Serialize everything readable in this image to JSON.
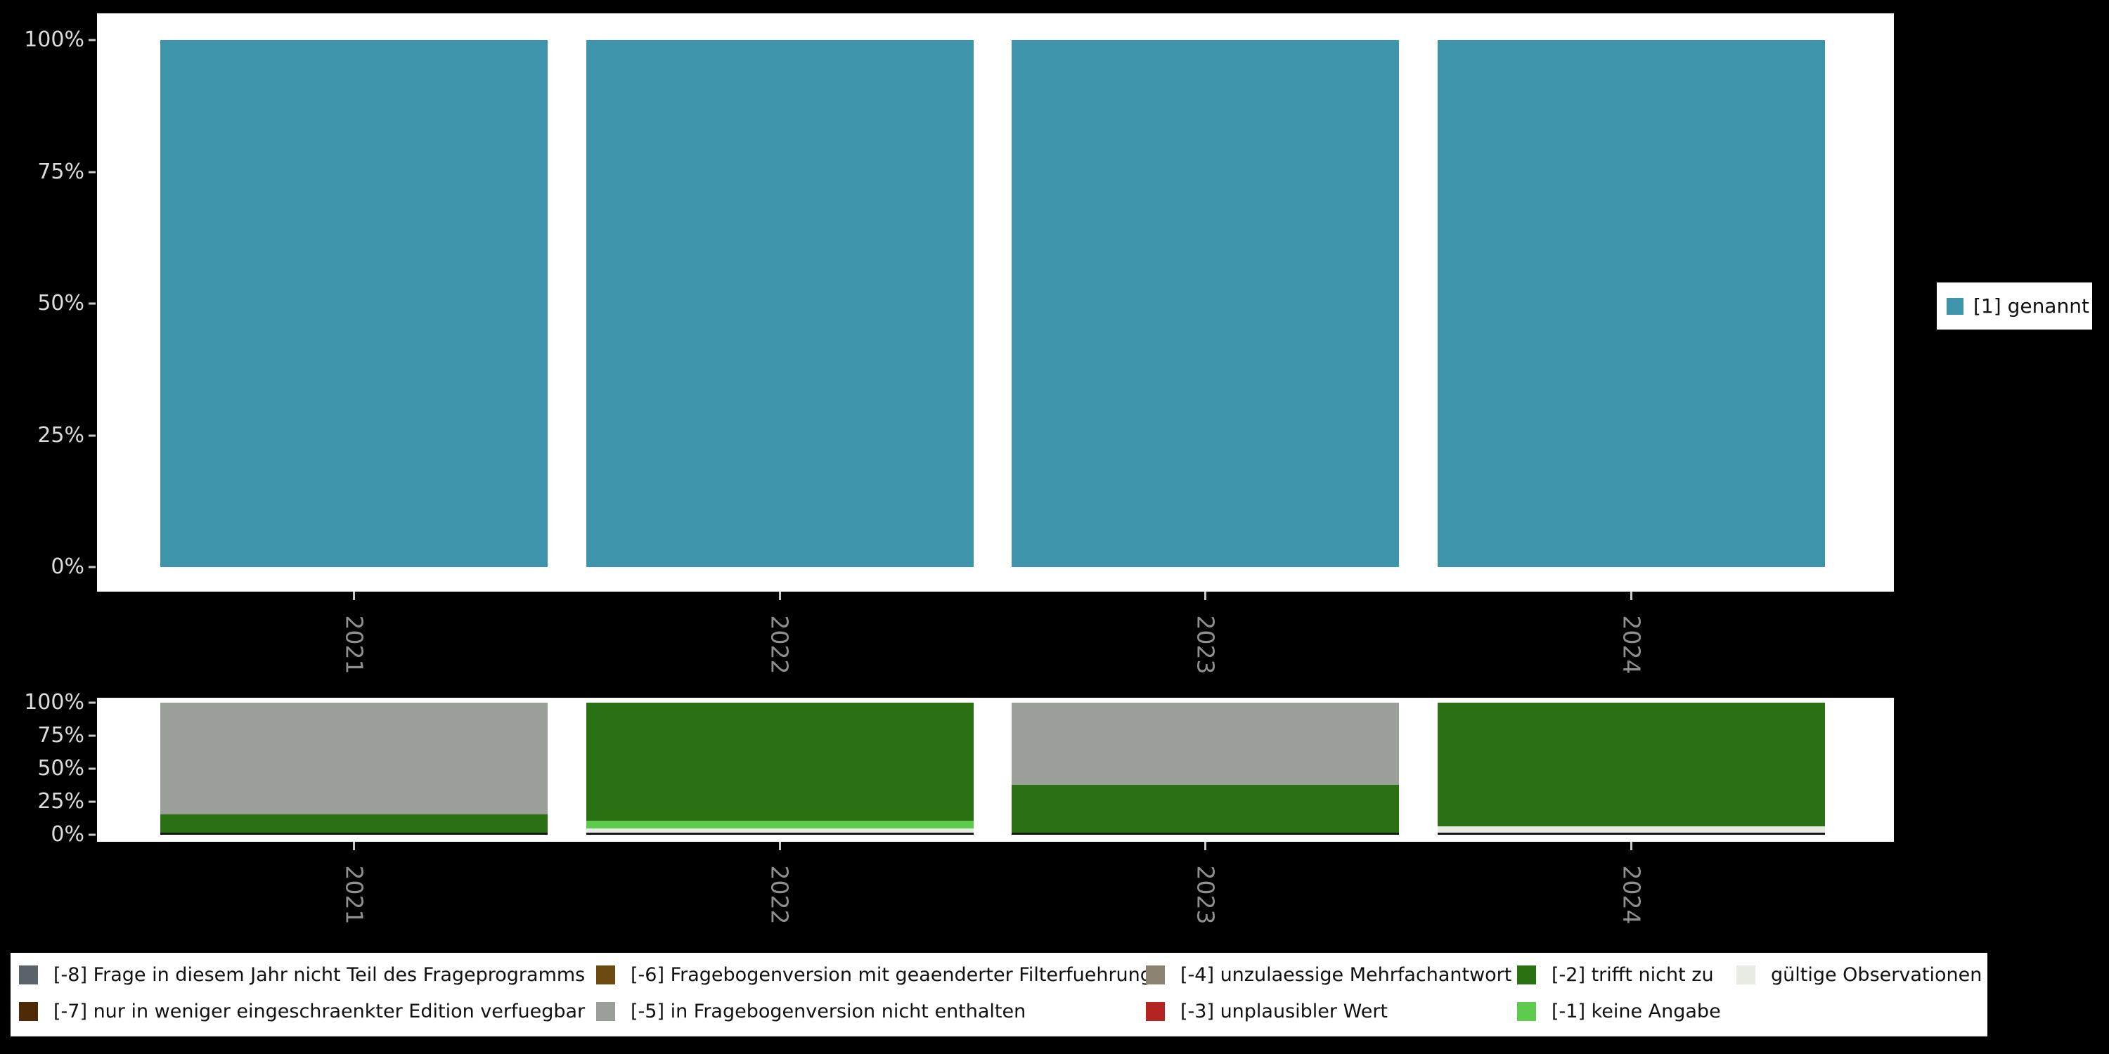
{
  "colors": {
    "background": "#000000",
    "panel": "#ffffff",
    "axis_tick_text": "#dcdcdc",
    "year_text": "#8f8f8f",
    "tick_mark": "#c9c9c9"
  },
  "chart_data": [
    {
      "id": "main-distribution",
      "type": "bar",
      "stacked": true,
      "title": "",
      "xlabel": "",
      "ylabel": "",
      "categories": [
        "2021",
        "2022",
        "2023",
        "2024"
      ],
      "series": [
        {
          "name": "[1] genannt",
          "color": "#3e95ab",
          "values": [
            100,
            100,
            100,
            100
          ]
        }
      ],
      "yticks": [
        0,
        25,
        50,
        75,
        100
      ],
      "ytick_labels": [
        "0%",
        "25%",
        "50%",
        "75%",
        "100%"
      ],
      "ylim": [
        0,
        100
      ],
      "grid": false,
      "legend_position": "right"
    },
    {
      "id": "missing-values",
      "type": "bar",
      "stacked": true,
      "title": "",
      "xlabel": "",
      "ylabel": "",
      "categories": [
        "2021",
        "2022",
        "2023",
        "2024"
      ],
      "series": [
        {
          "name": "[-8] Frage in diesem Jahr nicht Teil des Frageprogramms",
          "color": "#5a6367",
          "values": [
            0,
            0,
            0,
            0
          ]
        },
        {
          "name": "[-7] nur in weniger eingeschraenkter Edition verfuegbar",
          "color": "#4e2b07",
          "values": [
            0,
            0,
            0,
            0
          ]
        },
        {
          "name": "[-6] Fragebogenversion mit geaenderter Filterfuehrung",
          "color": "#6d4a0f",
          "values": [
            0,
            0,
            0,
            0
          ]
        },
        {
          "name": "[-5] in Fragebogenversion nicht enthalten",
          "color": "#9b9f99",
          "values": [
            86,
            0,
            63,
            0
          ]
        },
        {
          "name": "[-4] unzulaessige Mehrfachantwort",
          "color": "#8c8372",
          "values": [
            0,
            0,
            0,
            0
          ]
        },
        {
          "name": "[-3] unplausibler Wert",
          "color": "#b42420",
          "values": [
            0,
            0,
            0,
            0
          ]
        },
        {
          "name": "[-2] trifft nicht zu",
          "color": "#2a7114",
          "values": [
            14,
            91,
            37,
            95
          ]
        },
        {
          "name": "[-1] keine Angabe",
          "color": "#5ecb4e",
          "values": [
            0,
            6,
            0,
            0
          ]
        },
        {
          "name": "gültige Observationen",
          "color": "#e8eae4",
          "values": [
            0,
            3,
            0,
            5
          ]
        }
      ],
      "yticks": [
        0,
        25,
        50,
        75,
        100
      ],
      "ytick_labels": [
        "0%",
        "25%",
        "50%",
        "75%",
        "100%"
      ],
      "ylim": [
        0,
        100
      ],
      "grid": false,
      "legend_position": "bottom"
    }
  ]
}
